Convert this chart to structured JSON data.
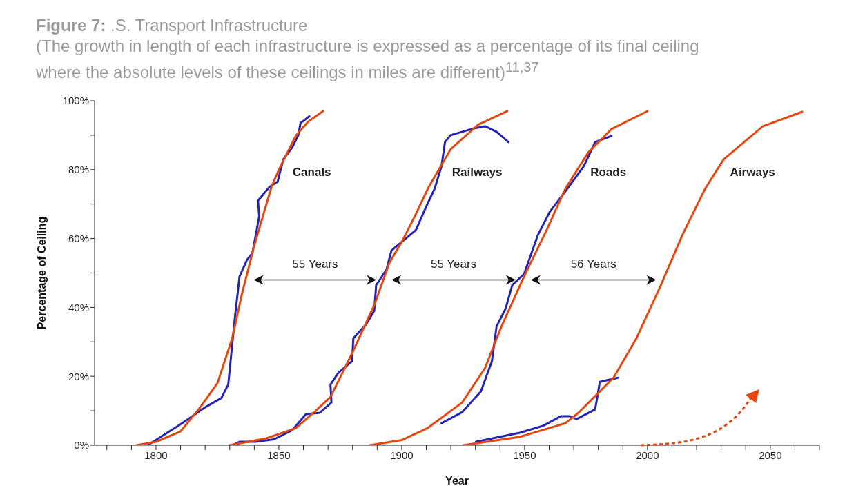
{
  "chart_data": {
    "type": "line",
    "title": "Figure 7: .S. Transport Infrastructure",
    "subtitle": "(The growth in length of each infrastructure is expressed as a percentage of its final ceiling where the absolute levels of these ceilings in miles are different)$^{11,37}$",
    "xlabel": "Year",
    "ylabel": "Percentage of Ceiling",
    "xlim": [
      1775,
      2070
    ],
    "xticks": [
      {
        "value": 1780,
        "label": null
      },
      {
        "value": 1790,
        "label": null
      },
      {
        "value": 1800,
        "label": "1800"
      },
      {
        "value": 1810,
        "label": null
      },
      {
        "value": 1820,
        "label": null
      },
      {
        "value": 1830,
        "label": null
      },
      {
        "value": 1840,
        "label": null
      },
      {
        "value": 1850,
        "label": "1850"
      },
      {
        "value": 1860,
        "label": null
      },
      {
        "value": 1870,
        "label": null
      },
      {
        "value": 1880,
        "label": null
      },
      {
        "value": 1890,
        "label": null
      },
      {
        "value": 1900,
        "label": "1900"
      },
      {
        "value": 1910,
        "label": null
      },
      {
        "value": 1920,
        "label": null
      },
      {
        "value": 1930,
        "label": null
      },
      {
        "value": 1940,
        "label": null
      },
      {
        "value": 1950,
        "label": "1950"
      },
      {
        "value": 1960,
        "label": null
      },
      {
        "value": 1970,
        "label": null
      },
      {
        "value": 1980,
        "label": null
      },
      {
        "value": 1990,
        "label": null
      },
      {
        "value": 2000,
        "label": "2000"
      },
      {
        "value": 2010,
        "label": null
      },
      {
        "value": 2020,
        "label": null
      },
      {
        "value": 2030,
        "label": null
      },
      {
        "value": 2040,
        "label": null
      },
      {
        "value": 2050,
        "label": "2050"
      },
      {
        "value": 2060,
        "label": null
      },
      {
        "value": 2070,
        "label": null
      }
    ],
    "ylim": [
      0,
      100
    ],
    "yticks": [
      {
        "value": 0,
        "label": "0%"
      },
      {
        "value": 10,
        "label": null
      },
      {
        "value": 20,
        "label": "20%"
      },
      {
        "value": 30,
        "label": null
      },
      {
        "value": 40,
        "label": "40%"
      },
      {
        "value": 50,
        "label": null
      },
      {
        "value": 60,
        "label": "60%"
      },
      {
        "value": 70,
        "label": null
      },
      {
        "value": 80,
        "label": "80%"
      },
      {
        "value": 90,
        "label": null
      },
      {
        "value": 100,
        "label": "100%"
      }
    ],
    "grid": false,
    "legend": false,
    "marker": "none",
    "line_style": "solid",
    "series": [
      {
        "color": "#2323b8",
        "x": [
          1796.6,
          1810.7,
          1820,
          1826.6,
          1829.4,
          1830.8,
          1832.2,
          1834,
          1837,
          1839.2,
          1840.6,
          1842,
          1841.5,
          1846.2,
          1849.5,
          1851.8,
          1855.5,
          1857.9,
          1858.8,
          1862.4
        ],
        "values": [
          0,
          6.4,
          11,
          13.7,
          17.6,
          27.7,
          37.7,
          49,
          53.8,
          55.7,
          61,
          66.5,
          71,
          75,
          76.5,
          83,
          86.5,
          90,
          93.5,
          95.5
        ]
      },
      {
        "color": "#e4470f",
        "x": [
          1792,
          1800,
          1810,
          1818,
          1825,
          1831,
          1835,
          1840,
          1847,
          1850,
          1857,
          1862,
          1868
        ],
        "values": [
          0,
          1,
          4,
          11,
          18,
          31,
          44,
          58,
          75,
          80,
          90,
          94,
          97
        ]
      },
      {
        "color": "#2323b8",
        "x": [
          1831,
          1834,
          1840.6,
          1848,
          1855.5,
          1861,
          1866.6,
          1871.4,
          1871,
          1874.2,
          1879.8,
          1880.3,
          1885.4,
          1888.8,
          1889.6,
          1893.8,
          1895.8,
          1896.6,
          1905.8,
          1909.8,
          1913.4,
          1916.2,
          1917.6,
          1919.9,
          1929.4,
          1933.9,
          1938.6,
          1943.4
        ],
        "values": [
          0,
          1,
          1,
          1.7,
          4.4,
          9,
          9.4,
          12.4,
          17.6,
          21,
          24.4,
          31,
          35,
          39,
          46.5,
          51,
          56.5,
          57,
          62.5,
          69,
          74.5,
          81,
          88,
          90,
          92,
          92.6,
          91,
          88
        ]
      },
      {
        "color": "#e4470f",
        "x": [
          1830,
          1845,
          1857,
          1865,
          1871,
          1880,
          1889,
          1895,
          1900,
          1905,
          1911,
          1920,
          1931,
          1943
        ],
        "values": [
          0,
          2,
          5,
          10,
          14,
          27,
          41,
          53,
          59,
          66,
          75,
          86,
          93,
          97
        ]
      },
      {
        "color": "#2323b8",
        "x": [
          1916.2,
          1924.6,
          1932.2,
          1936.7,
          1938.6,
          1942.3,
          1945,
          1949.8,
          1955.4,
          1960.2,
          1966.6,
          1974.1,
          1978.7,
          1985.4
        ],
        "values": [
          6.4,
          9.6,
          15.6,
          24.4,
          34.5,
          39.7,
          46.5,
          49.7,
          61,
          67.7,
          73.7,
          81,
          88,
          89.8
        ]
      },
      {
        "color": "#e4470f",
        "x": [
          1887,
          1900,
          1910.6,
          1924.6,
          1933.9,
          1940.6,
          1949.8,
          1959,
          1966.6,
          1975.9,
          1985.4,
          2000
        ],
        "values": [
          0,
          1.5,
          5,
          12.4,
          22.4,
          34.5,
          49,
          62.5,
          74.5,
          85,
          91.8,
          97
        ]
      },
      {
        "color": "#2323b8",
        "x": [
          1930.2,
          1948,
          1957.4,
          1964.7,
          1968.5,
          1971.2,
          1978.7,
          1979.7,
          1980.6,
          1988
        ],
        "values": [
          1,
          3.6,
          5.6,
          8.4,
          8.4,
          7.6,
          10.4,
          14.4,
          18.4,
          19.6
        ]
      },
      {
        "color": "#e4470f",
        "x": [
          1925,
          1948,
          1966.6,
          1972.2,
          1986.2,
          1995.5,
          2000,
          2005,
          2014.2,
          2023.5,
          2031,
          2047,
          2063
        ],
        "values": [
          0,
          2.4,
          6.4,
          9.6,
          19.6,
          31,
          38,
          45.7,
          61,
          74.5,
          83,
          92.6,
          96.8
        ]
      }
    ],
    "annotations": [
      "Canals",
      "Railways",
      "Roads",
      "Airways",
      "55 Years",
      "55 Years",
      "56 Years"
    ]
  }
}
